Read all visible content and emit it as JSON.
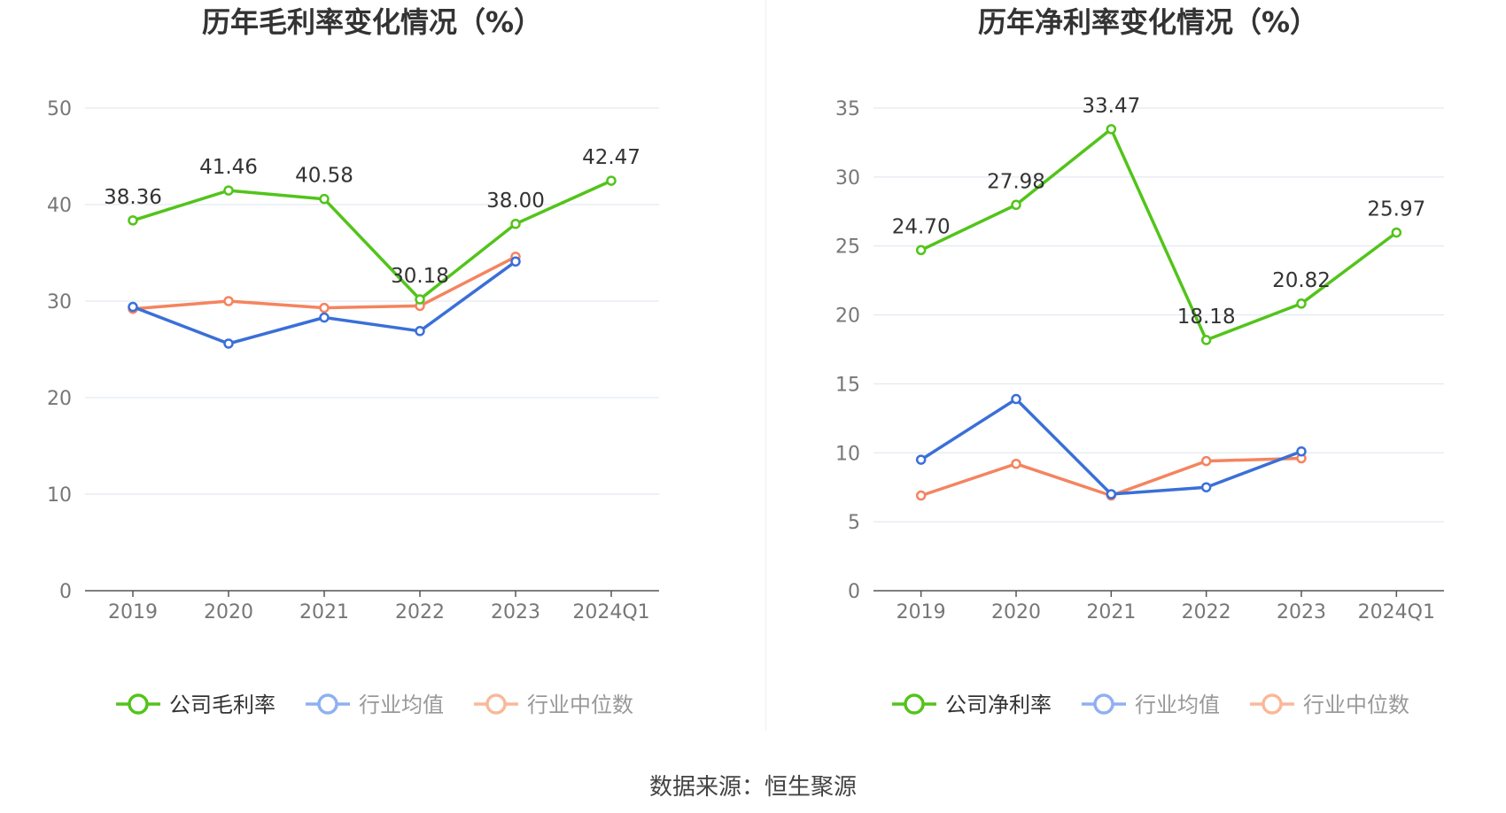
{
  "source_text": "数据来源：恒生聚源",
  "chart_data": [
    {
      "type": "line",
      "title": "历年毛利率变化情况（%）",
      "categories": [
        "2019",
        "2020",
        "2021",
        "2022",
        "2023",
        "2024Q1"
      ],
      "ylim": [
        0,
        50
      ],
      "yticks": [
        0,
        10,
        20,
        30,
        40,
        50
      ],
      "grid": true,
      "legend_position": "bottom",
      "series": [
        {
          "name": "公司毛利率",
          "color": "#52c41a",
          "values": [
            38.36,
            41.46,
            40.58,
            30.18,
            38.0,
            42.47
          ],
          "labels": [
            "38.36",
            "41.46",
            "40.58",
            "30.18",
            "38.00",
            "42.47"
          ]
        },
        {
          "name": "行业均值",
          "color": "#3a6fd8",
          "values": [
            29.4,
            25.6,
            28.3,
            26.9,
            34.1,
            null
          ]
        },
        {
          "name": "行业中位数",
          "color": "#f4845f",
          "values": [
            29.2,
            30.0,
            29.3,
            29.5,
            34.6,
            null
          ]
        }
      ]
    },
    {
      "type": "line",
      "title": "历年净利率变化情况（%）",
      "categories": [
        "2019",
        "2020",
        "2021",
        "2022",
        "2023",
        "2024Q1"
      ],
      "ylim": [
        0,
        35
      ],
      "yticks": [
        0,
        5,
        10,
        15,
        20,
        25,
        30,
        35
      ],
      "grid": true,
      "legend_position": "bottom",
      "series": [
        {
          "name": "公司净利率",
          "color": "#52c41a",
          "values": [
            24.7,
            27.98,
            33.47,
            18.18,
            20.82,
            25.97
          ],
          "labels": [
            "24.70",
            "27.98",
            "33.47",
            "18.18",
            "20.82",
            "25.97"
          ]
        },
        {
          "name": "行业均值",
          "color": "#3a6fd8",
          "values": [
            9.5,
            13.9,
            7.0,
            7.5,
            10.1,
            null
          ]
        },
        {
          "name": "行业中位数",
          "color": "#f4845f",
          "values": [
            6.9,
            9.2,
            6.9,
            9.4,
            9.6,
            null
          ]
        }
      ]
    }
  ]
}
